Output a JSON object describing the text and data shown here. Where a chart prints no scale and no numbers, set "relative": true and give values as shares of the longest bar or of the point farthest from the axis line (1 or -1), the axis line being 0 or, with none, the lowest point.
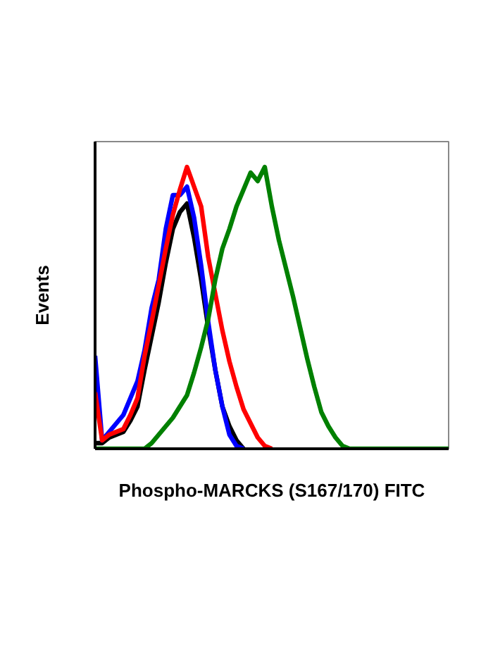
{
  "chart_data": {
    "type": "line",
    "relative": true,
    "xlabel": "Phospho-MARCKS (S167/170) FITC",
    "ylabel": "Events",
    "categories": [
      null,
      null,
      null,
      null,
      null,
      null,
      null,
      null,
      null,
      null,
      null,
      null,
      null,
      null,
      null,
      null,
      null,
      null,
      null,
      null,
      null,
      null,
      null,
      null,
      null,
      null,
      null,
      null,
      null,
      null,
      null,
      null,
      null,
      null,
      null,
      null,
      null,
      null,
      null,
      null,
      null,
      null,
      null,
      null,
      null,
      null,
      null,
      null,
      null,
      null,
      null
    ],
    "series": [
      {
        "color": "#000000",
        "values": [
          0.02,
          0.02,
          0.04,
          0.05,
          0.06,
          0.1,
          0.15,
          0.28,
          0.4,
          0.52,
          0.66,
          0.78,
          0.84,
          0.87,
          0.75,
          0.6,
          0.43,
          0.28,
          0.15,
          0.08,
          0.03,
          0,
          null,
          null,
          null,
          null,
          null,
          null,
          null,
          null,
          null,
          null,
          null,
          null,
          null,
          null,
          null,
          null,
          null,
          null,
          null,
          null,
          null,
          null,
          null,
          null,
          null,
          null,
          null,
          null,
          null
        ]
      },
      {
        "color": "#0000ff",
        "values": [
          0.33,
          0.03,
          0.06,
          0.09,
          0.12,
          0.18,
          0.24,
          0.35,
          0.5,
          0.6,
          0.78,
          0.9,
          0.9,
          0.93,
          0.82,
          0.65,
          0.45,
          0.28,
          0.15,
          0.05,
          0.01,
          0,
          null,
          null,
          null,
          null,
          null,
          null,
          null,
          null,
          null,
          null,
          null,
          null,
          null,
          null,
          null,
          null,
          null,
          null,
          null,
          null,
          null,
          null,
          null,
          null,
          null,
          null,
          null,
          null,
          null
        ]
      },
      {
        "color": "#ff0000",
        "values": [
          0.2,
          0.03,
          0.05,
          0.06,
          0.07,
          0.12,
          0.18,
          0.33,
          0.45,
          0.58,
          0.71,
          0.83,
          0.92,
          1,
          0.93,
          0.86,
          0.68,
          0.55,
          0.42,
          0.31,
          0.22,
          0.14,
          0.09,
          0.04,
          0.01,
          0,
          null,
          null,
          null,
          null,
          null,
          null,
          null,
          null,
          null,
          null,
          null,
          null,
          null,
          null,
          null,
          null,
          null,
          null,
          null,
          null,
          null,
          null,
          null,
          null,
          null
        ]
      },
      {
        "color": "#008000",
        "values": [
          0,
          0,
          0,
          0,
          0,
          0,
          0,
          0,
          0.02,
          0.05,
          0.08,
          0.11,
          0.15,
          0.19,
          0.27,
          0.36,
          0.46,
          0.6,
          0.71,
          0.78,
          0.86,
          0.92,
          0.98,
          0.95,
          1,
          0.86,
          0.74,
          0.64,
          0.54,
          0.43,
          0.32,
          0.22,
          0.13,
          0.08,
          0.04,
          0.01,
          0,
          0,
          0,
          0,
          0,
          0,
          0,
          0,
          0,
          0,
          0,
          0,
          0,
          0,
          0
        ]
      }
    ]
  }
}
